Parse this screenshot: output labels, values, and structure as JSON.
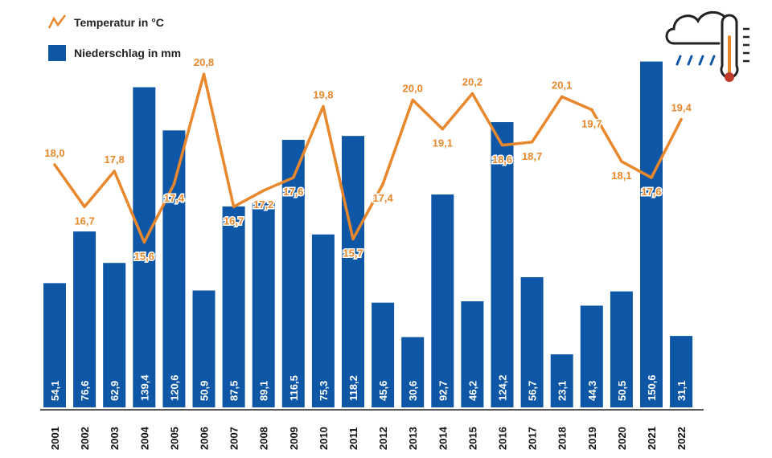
{
  "legend": {
    "temperature_label": "Temperatur in °C",
    "precipitation_label": "Niederschlag in mm"
  },
  "colors": {
    "bar": "#0d57a6",
    "line": "#e8872c",
    "bar_label": "#ffffff",
    "temp_label": "#e8872c"
  },
  "icon": "weather-cloud-rain-thermometer-icon",
  "chart_data": {
    "type": "bar",
    "categories": [
      "2001",
      "2002",
      "2003",
      "2004",
      "2005",
      "2006",
      "2007",
      "2008",
      "2009",
      "2010",
      "2011",
      "2012",
      "2013",
      "2014",
      "2015",
      "2016",
      "2017",
      "2018",
      "2019",
      "2020",
      "2021",
      "2022"
    ],
    "series": [
      {
        "name": "Niederschlag in mm",
        "type": "bar",
        "values": [
          54.1,
          76.6,
          62.9,
          139.4,
          120.6,
          50.9,
          87.5,
          89.1,
          116.5,
          75.3,
          118.2,
          45.6,
          30.6,
          92.7,
          46.2,
          124.2,
          56.7,
          23.1,
          44.3,
          50.5,
          150.6,
          31.1
        ],
        "labels": [
          "54,1",
          "76,6",
          "62,9",
          "139,4",
          "120,6",
          "50,9",
          "87,5",
          "89,1",
          "116,5",
          "75,3",
          "118,2",
          "45,6",
          "30,6",
          "92,7",
          "46,2",
          "124,2",
          "56,7",
          "23,1",
          "44,3",
          "50,5",
          "150,6",
          "31,1"
        ]
      },
      {
        "name": "Temperatur in °C",
        "type": "line",
        "values": [
          18.0,
          16.7,
          17.8,
          15.6,
          17.4,
          20.8,
          16.7,
          17.2,
          17.6,
          19.8,
          15.7,
          17.4,
          20.0,
          19.1,
          20.2,
          18.6,
          18.7,
          20.1,
          19.7,
          18.1,
          17.6,
          19.4
        ],
        "labels": [
          "18,0",
          "16,7",
          "17,8",
          "15,6",
          "17,4",
          "20,8",
          "16,7",
          "17,2",
          "17,6",
          "19,8",
          "15,7",
          "17,4",
          "20,0",
          "19,1",
          "20,2",
          "18,6",
          "18,7",
          "20,1",
          "19,7",
          "18,1",
          "17,6",
          "19,4"
        ]
      }
    ],
    "y_precip_range": [
      0,
      155
    ],
    "y_temp_range": [
      10.5,
      21.5
    ],
    "grid": false,
    "legend_position": "top-left"
  }
}
